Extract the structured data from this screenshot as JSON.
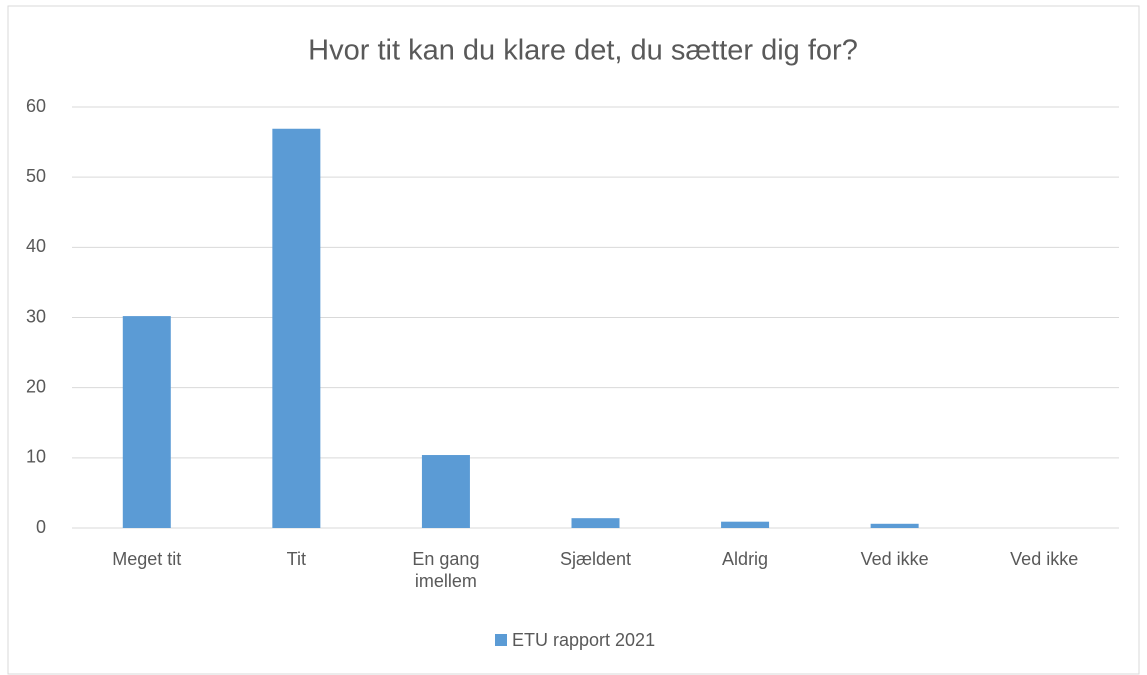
{
  "chart_data": {
    "type": "bar",
    "title": "Hvor tit kan du klare det, du sætter dig for?",
    "categories": [
      "Meget tit",
      "Tit",
      "En gang imellem",
      "Sjældent",
      "Aldrig",
      "Ved ikke",
      "Ved ikke"
    ],
    "series": [
      {
        "name": "ETU rapport 2021",
        "color": "#5b9bd5",
        "values": [
          30.2,
          56.9,
          10.4,
          1.4,
          0.9,
          0.6,
          0
        ]
      }
    ],
    "ylim": [
      0,
      60
    ],
    "yticks": [
      0,
      10,
      20,
      30,
      40,
      50,
      60
    ],
    "grid": true,
    "legend": "bottom"
  }
}
